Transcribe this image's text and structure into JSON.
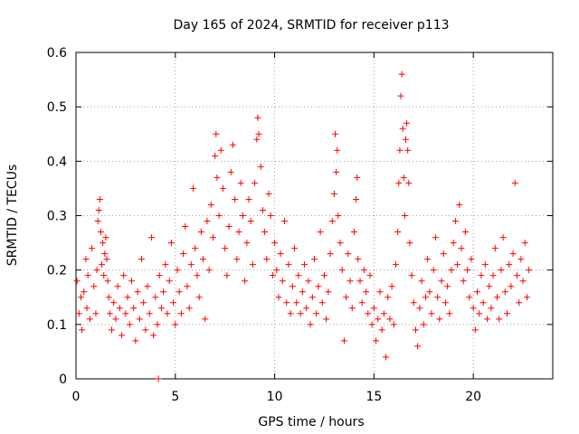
{
  "chart_data": {
    "type": "scatter",
    "title": "Day 165 of 2024, SRMTID for receiver p113",
    "xlabel": "GPS time / hours",
    "ylabel": "SRMTID / TECUs",
    "xlim": [
      0,
      24
    ],
    "ylim": [
      0,
      0.6
    ],
    "xticks": [
      0,
      5,
      10,
      15,
      20
    ],
    "xtick_labels": [
      "0",
      "5",
      "10",
      "15",
      "20"
    ],
    "yticks": [
      0,
      0.1,
      0.2,
      0.3,
      0.4,
      0.5,
      0.6
    ],
    "ytick_labels": [
      "0",
      "0.1",
      "0.2",
      "0.3",
      "0.4",
      "0.5",
      "0.6"
    ],
    "grid": true,
    "marker": "+",
    "color": "#ff0000",
    "series": [
      {
        "name": "SRMTID",
        "points": [
          [
            0.05,
            0.18
          ],
          [
            0.15,
            0.12
          ],
          [
            0.25,
            0.15
          ],
          [
            0.3,
            0.09
          ],
          [
            0.4,
            0.16
          ],
          [
            0.5,
            0.22
          ],
          [
            0.55,
            0.13
          ],
          [
            0.6,
            0.19
          ],
          [
            0.7,
            0.11
          ],
          [
            0.8,
            0.24
          ],
          [
            0.9,
            0.17
          ],
          [
            1.0,
            0.12
          ],
          [
            1.05,
            0.2
          ],
          [
            1.1,
            0.29
          ],
          [
            1.15,
            0.31
          ],
          [
            1.2,
            0.33
          ],
          [
            1.25,
            0.27
          ],
          [
            1.3,
            0.21
          ],
          [
            1.35,
            0.25
          ],
          [
            1.4,
            0.19
          ],
          [
            1.45,
            0.23
          ],
          [
            1.5,
            0.26
          ],
          [
            1.55,
            0.22
          ],
          [
            1.6,
            0.18
          ],
          [
            1.65,
            0.15
          ],
          [
            1.7,
            0.12
          ],
          [
            1.8,
            0.09
          ],
          [
            1.9,
            0.14
          ],
          [
            2.0,
            0.11
          ],
          [
            2.1,
            0.17
          ],
          [
            2.2,
            0.13
          ],
          [
            2.3,
            0.08
          ],
          [
            2.4,
            0.19
          ],
          [
            2.5,
            0.12
          ],
          [
            2.6,
            0.15
          ],
          [
            2.7,
            0.1
          ],
          [
            2.8,
            0.18
          ],
          [
            2.9,
            0.13
          ],
          [
            3.0,
            0.07
          ],
          [
            3.1,
            0.16
          ],
          [
            3.2,
            0.11
          ],
          [
            3.3,
            0.22
          ],
          [
            3.4,
            0.14
          ],
          [
            3.5,
            0.09
          ],
          [
            3.6,
            0.17
          ],
          [
            3.7,
            0.12
          ],
          [
            3.8,
            0.26
          ],
          [
            3.9,
            0.08
          ],
          [
            4.0,
            0.15
          ],
          [
            4.1,
            0.1
          ],
          [
            4.15,
            0.0
          ],
          [
            4.2,
            0.19
          ],
          [
            4.3,
            0.13
          ],
          [
            4.4,
            0.16
          ],
          [
            4.5,
            0.21
          ],
          [
            4.6,
            0.12
          ],
          [
            4.7,
            0.18
          ],
          [
            4.8,
            0.25
          ],
          [
            4.9,
            0.14
          ],
          [
            5.0,
            0.1
          ],
          [
            5.1,
            0.2
          ],
          [
            5.2,
            0.16
          ],
          [
            5.3,
            0.12
          ],
          [
            5.4,
            0.23
          ],
          [
            5.5,
            0.28
          ],
          [
            5.6,
            0.17
          ],
          [
            5.7,
            0.13
          ],
          [
            5.8,
            0.21
          ],
          [
            5.9,
            0.35
          ],
          [
            6.0,
            0.24
          ],
          [
            6.1,
            0.19
          ],
          [
            6.2,
            0.15
          ],
          [
            6.3,
            0.27
          ],
          [
            6.4,
            0.22
          ],
          [
            6.5,
            0.11
          ],
          [
            6.6,
            0.29
          ],
          [
            6.7,
            0.2
          ],
          [
            6.8,
            0.32
          ],
          [
            6.9,
            0.26
          ],
          [
            7.0,
            0.41
          ],
          [
            7.05,
            0.45
          ],
          [
            7.1,
            0.37
          ],
          [
            7.2,
            0.3
          ],
          [
            7.3,
            0.42
          ],
          [
            7.4,
            0.35
          ],
          [
            7.5,
            0.24
          ],
          [
            7.6,
            0.19
          ],
          [
            7.7,
            0.28
          ],
          [
            7.8,
            0.38
          ],
          [
            7.9,
            0.43
          ],
          [
            8.0,
            0.33
          ],
          [
            8.1,
            0.22
          ],
          [
            8.2,
            0.27
          ],
          [
            8.3,
            0.36
          ],
          [
            8.4,
            0.3
          ],
          [
            8.5,
            0.18
          ],
          [
            8.6,
            0.25
          ],
          [
            8.7,
            0.33
          ],
          [
            8.8,
            0.29
          ],
          [
            8.9,
            0.21
          ],
          [
            9.0,
            0.36
          ],
          [
            9.1,
            0.44
          ],
          [
            9.15,
            0.48
          ],
          [
            9.2,
            0.45
          ],
          [
            9.3,
            0.39
          ],
          [
            9.4,
            0.31
          ],
          [
            9.5,
            0.27
          ],
          [
            9.6,
            0.22
          ],
          [
            9.7,
            0.34
          ],
          [
            9.8,
            0.3
          ],
          [
            9.9,
            0.19
          ],
          [
            10.0,
            0.25
          ],
          [
            10.1,
            0.2
          ],
          [
            10.2,
            0.15
          ],
          [
            10.3,
            0.23
          ],
          [
            10.4,
            0.18
          ],
          [
            10.5,
            0.29
          ],
          [
            10.6,
            0.14
          ],
          [
            10.7,
            0.21
          ],
          [
            10.8,
            0.12
          ],
          [
            10.9,
            0.17
          ],
          [
            11.0,
            0.24
          ],
          [
            11.1,
            0.14
          ],
          [
            11.2,
            0.19
          ],
          [
            11.3,
            0.12
          ],
          [
            11.4,
            0.16
          ],
          [
            11.5,
            0.21
          ],
          [
            11.6,
            0.13
          ],
          [
            11.7,
            0.18
          ],
          [
            11.8,
            0.1
          ],
          [
            11.9,
            0.15
          ],
          [
            12.0,
            0.22
          ],
          [
            12.1,
            0.12
          ],
          [
            12.2,
            0.17
          ],
          [
            12.3,
            0.27
          ],
          [
            12.4,
            0.14
          ],
          [
            12.5,
            0.19
          ],
          [
            12.6,
            0.11
          ],
          [
            12.7,
            0.16
          ],
          [
            12.8,
            0.23
          ],
          [
            12.9,
            0.29
          ],
          [
            13.0,
            0.34
          ],
          [
            13.05,
            0.45
          ],
          [
            13.1,
            0.38
          ],
          [
            13.15,
            0.42
          ],
          [
            13.2,
            0.3
          ],
          [
            13.3,
            0.25
          ],
          [
            13.4,
            0.2
          ],
          [
            13.5,
            0.07
          ],
          [
            13.6,
            0.15
          ],
          [
            13.7,
            0.23
          ],
          [
            13.8,
            0.18
          ],
          [
            13.9,
            0.13
          ],
          [
            14.0,
            0.27
          ],
          [
            14.1,
            0.33
          ],
          [
            14.15,
            0.37
          ],
          [
            14.2,
            0.22
          ],
          [
            14.3,
            0.18
          ],
          [
            14.4,
            0.14
          ],
          [
            14.5,
            0.2
          ],
          [
            14.6,
            0.16
          ],
          [
            14.7,
            0.12
          ],
          [
            14.8,
            0.19
          ],
          [
            14.9,
            0.1
          ],
          [
            15.0,
            0.13
          ],
          [
            15.1,
            0.07
          ],
          [
            15.2,
            0.11
          ],
          [
            15.3,
            0.16
          ],
          [
            15.4,
            0.09
          ],
          [
            15.5,
            0.12
          ],
          [
            15.6,
            0.04
          ],
          [
            15.7,
            0.15
          ],
          [
            15.8,
            0.11
          ],
          [
            15.9,
            0.17
          ],
          [
            16.0,
            0.1
          ],
          [
            16.1,
            0.21
          ],
          [
            16.2,
            0.27
          ],
          [
            16.25,
            0.36
          ],
          [
            16.3,
            0.42
          ],
          [
            16.35,
            0.52
          ],
          [
            16.4,
            0.56
          ],
          [
            16.45,
            0.46
          ],
          [
            16.5,
            0.37
          ],
          [
            16.55,
            0.3
          ],
          [
            16.6,
            0.44
          ],
          [
            16.65,
            0.47
          ],
          [
            16.7,
            0.42
          ],
          [
            16.75,
            0.36
          ],
          [
            16.8,
            0.25
          ],
          [
            16.9,
            0.19
          ],
          [
            17.0,
            0.14
          ],
          [
            17.1,
            0.09
          ],
          [
            17.2,
            0.06
          ],
          [
            17.3,
            0.13
          ],
          [
            17.4,
            0.18
          ],
          [
            17.5,
            0.1
          ],
          [
            17.6,
            0.15
          ],
          [
            17.7,
            0.22
          ],
          [
            17.8,
            0.16
          ],
          [
            17.9,
            0.12
          ],
          [
            18.0,
            0.2
          ],
          [
            18.1,
            0.26
          ],
          [
            18.2,
            0.15
          ],
          [
            18.3,
            0.11
          ],
          [
            18.4,
            0.18
          ],
          [
            18.5,
            0.23
          ],
          [
            18.6,
            0.14
          ],
          [
            18.7,
            0.17
          ],
          [
            18.8,
            0.12
          ],
          [
            18.9,
            0.2
          ],
          [
            19.0,
            0.25
          ],
          [
            19.1,
            0.29
          ],
          [
            19.2,
            0.21
          ],
          [
            19.3,
            0.32
          ],
          [
            19.4,
            0.24
          ],
          [
            19.5,
            0.18
          ],
          [
            19.6,
            0.27
          ],
          [
            19.7,
            0.2
          ],
          [
            19.8,
            0.15
          ],
          [
            19.9,
            0.22
          ],
          [
            20.0,
            0.13
          ],
          [
            20.1,
            0.09
          ],
          [
            20.2,
            0.16
          ],
          [
            20.3,
            0.12
          ],
          [
            20.4,
            0.19
          ],
          [
            20.5,
            0.14
          ],
          [
            20.6,
            0.21
          ],
          [
            20.7,
            0.11
          ],
          [
            20.8,
            0.17
          ],
          [
            20.9,
            0.13
          ],
          [
            21.0,
            0.19
          ],
          [
            21.1,
            0.24
          ],
          [
            21.2,
            0.15
          ],
          [
            21.3,
            0.11
          ],
          [
            21.4,
            0.2
          ],
          [
            21.5,
            0.26
          ],
          [
            21.6,
            0.16
          ],
          [
            21.7,
            0.12
          ],
          [
            21.8,
            0.21
          ],
          [
            21.9,
            0.17
          ],
          [
            22.0,
            0.23
          ],
          [
            22.1,
            0.36
          ],
          [
            22.2,
            0.19
          ],
          [
            22.3,
            0.14
          ],
          [
            22.4,
            0.22
          ],
          [
            22.5,
            0.18
          ],
          [
            22.6,
            0.25
          ],
          [
            22.7,
            0.15
          ],
          [
            22.8,
            0.2
          ]
        ]
      }
    ]
  }
}
